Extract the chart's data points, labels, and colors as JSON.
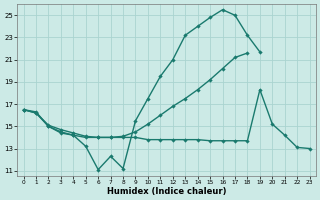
{
  "xlabel": "Humidex (Indice chaleur)",
  "x_values": [
    0,
    1,
    2,
    3,
    4,
    5,
    6,
    7,
    8,
    9,
    10,
    11,
    12,
    13,
    14,
    15,
    16,
    17,
    18,
    19,
    20,
    21,
    22,
    23
  ],
  "line_top": [
    16.5,
    16.3,
    15.0,
    14.4,
    14.2,
    13.2,
    11.1,
    12.3,
    11.2,
    15.5,
    17.5,
    19.5,
    21.0,
    23.2,
    24.0,
    24.8,
    25.5,
    25.0,
    23.2,
    21.7,
    null,
    null,
    null,
    null
  ],
  "line_mid": [
    16.5,
    16.2,
    15.1,
    14.7,
    14.4,
    14.1,
    14.0,
    14.0,
    14.1,
    14.5,
    15.2,
    16.0,
    16.8,
    17.5,
    18.3,
    19.2,
    20.2,
    21.2,
    21.6,
    null,
    null,
    null,
    null,
    null
  ],
  "line_bot": [
    16.5,
    16.2,
    15.0,
    14.5,
    14.2,
    14.0,
    14.0,
    14.0,
    14.0,
    14.0,
    13.8,
    13.8,
    13.8,
    13.8,
    13.8,
    13.7,
    13.7,
    13.7,
    13.7,
    18.3,
    15.2,
    14.2,
    13.1,
    13.0
  ],
  "line_color": "#1a7a6e",
  "bg_color": "#cceae6",
  "grid_color": "#aad4d0",
  "ylim": [
    10.5,
    26.0
  ],
  "xlim": [
    -0.5,
    23.5
  ],
  "yticks": [
    11,
    13,
    15,
    17,
    19,
    21,
    23,
    25
  ],
  "xticks": [
    0,
    1,
    2,
    3,
    4,
    5,
    6,
    7,
    8,
    9,
    10,
    11,
    12,
    13,
    14,
    15,
    16,
    17,
    18,
    19,
    20,
    21,
    22,
    23
  ],
  "linewidth": 1.0,
  "markersize": 2.2
}
